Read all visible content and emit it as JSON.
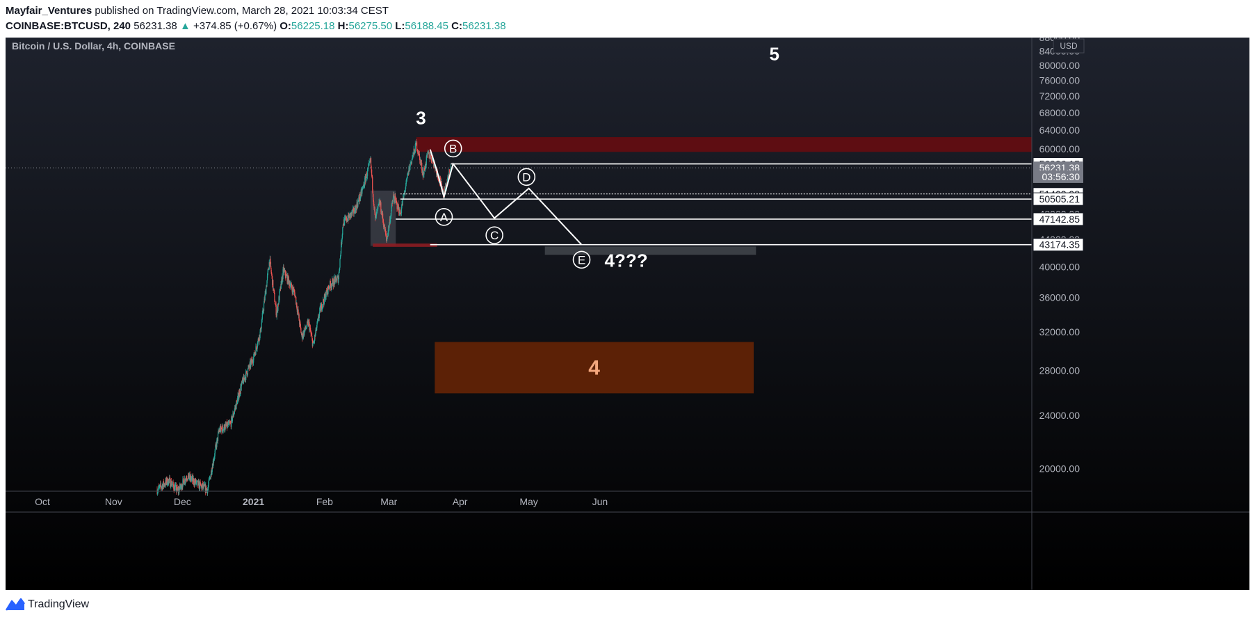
{
  "header": {
    "author": "Mayfair_Ventures",
    "published_text": "published on TradingView.com, March 28, 2021 10:03:34 CEST",
    "symbol": "COINBASE:BTCUSD, 240",
    "last": "56231.38",
    "change_arrow": "▲",
    "change": "+374.85 (+0.67%)",
    "o_label": "O:",
    "o_value": "56225.18",
    "h_label": "H:",
    "h_value": "56275.50",
    "l_label": "L:",
    "l_value": "56188.45",
    "c_label": "C:",
    "c_value": "56231.38"
  },
  "footer": {
    "brand": "TradingView",
    "logo_icon": "tradingview-logo-icon"
  },
  "colors": {
    "up": "#26a69a",
    "down": "#ef5350",
    "background_top": "#1e222d",
    "background_bottom": "#000000",
    "resistance_zone": "#5e0d12",
    "target_zone": "#5c2106",
    "target_text": "#f4a77d",
    "support_zone": "#3a3e44"
  },
  "chart_data": {
    "type": "candlestick",
    "title": "Bitcoin / U.S. Dollar, 4h, COINBASE",
    "currency_badge": "USD",
    "log_scale": true,
    "ylim": [
      18500,
      88000
    ],
    "y_ticks": [
      "88000.00",
      "84000.00",
      "80000.00",
      "76000.00",
      "72000.00",
      "68000.00",
      "64000.00",
      "60000.00",
      "56000.00",
      "52000.00",
      "48000.00",
      "44000.00",
      "40000.00",
      "36000.00",
      "32000.00",
      "28000.00",
      "24000.00",
      "20000.00"
    ],
    "x_ticks": [
      {
        "label": "Oct",
        "bold": false,
        "date": "2020-10-01"
      },
      {
        "label": "Nov",
        "bold": false,
        "date": "2020-11-01"
      },
      {
        "label": "Dec",
        "bold": false,
        "date": "2020-12-01"
      },
      {
        "label": "2021",
        "bold": true,
        "date": "2021-01-01"
      },
      {
        "label": "Feb",
        "bold": false,
        "date": "2021-02-01"
      },
      {
        "label": "Mar",
        "bold": false,
        "date": "2021-03-01"
      },
      {
        "label": "Apr",
        "bold": false,
        "date": "2021-04-01"
      },
      {
        "label": "May",
        "bold": false,
        "date": "2021-05-01"
      },
      {
        "label": "Jun",
        "bold": false,
        "date": "2021-06-01"
      }
    ],
    "price_path": [
      [
        "2020-11-20",
        18600
      ],
      [
        "2020-11-25",
        19200
      ],
      [
        "2020-11-29",
        18500
      ],
      [
        "2020-12-03",
        19500
      ],
      [
        "2020-12-08",
        18900
      ],
      [
        "2020-12-12",
        18600
      ],
      [
        "2020-12-17",
        22800
      ],
      [
        "2020-12-22",
        23300
      ],
      [
        "2020-12-27",
        26800
      ],
      [
        "2021-01-01",
        29300
      ],
      [
        "2021-01-04",
        32000
      ],
      [
        "2021-01-08",
        41000
      ],
      [
        "2021-01-11",
        34000
      ],
      [
        "2021-01-14",
        39500
      ],
      [
        "2021-01-19",
        36500
      ],
      [
        "2021-01-22",
        31500
      ],
      [
        "2021-01-25",
        33000
      ],
      [
        "2021-01-27",
        30500
      ],
      [
        "2021-01-30",
        34500
      ],
      [
        "2021-02-03",
        37500
      ],
      [
        "2021-02-07",
        38500
      ],
      [
        "2021-02-09",
        46500
      ],
      [
        "2021-02-14",
        48500
      ],
      [
        "2021-02-17",
        51500
      ],
      [
        "2021-02-21",
        57500
      ],
      [
        "2021-02-23",
        47000
      ],
      [
        "2021-02-25",
        50000
      ],
      [
        "2021-02-28",
        43800
      ],
      [
        "2021-03-03",
        51000
      ],
      [
        "2021-03-06",
        48000
      ],
      [
        "2021-03-10",
        56500
      ],
      [
        "2021-03-13",
        61000
      ],
      [
        "2021-03-16",
        55000
      ],
      [
        "2021-03-18",
        59000
      ],
      [
        "2021-03-20",
        58000
      ],
      [
        "2021-03-25",
        51500
      ],
      [
        "2021-03-28",
        56231
      ]
    ],
    "series": [
      {
        "type": "candlestick"
      }
    ],
    "price_labels": [
      {
        "value": "56996.15",
        "price": 56996.15,
        "style": "white"
      },
      {
        "value": "56231.38",
        "price": 56231.38,
        "style": "gray"
      },
      {
        "value": "03:56:30",
        "price": 54550,
        "style": "gray"
      },
      {
        "value": "51402.98",
        "price": 51402.98,
        "style": "white"
      },
      {
        "value": "50505.21",
        "price": 50505.21,
        "style": "white"
      },
      {
        "value": "47142.85",
        "price": 47142.85,
        "style": "white"
      },
      {
        "value": "43174.35",
        "price": 43174.35,
        "style": "white"
      }
    ],
    "horizontal_lines": [
      {
        "price": 56996.15,
        "from": "2021-03-28"
      },
      {
        "price": 51402.98,
        "from": "2021-03-06",
        "dotted": true
      },
      {
        "price": 50505.21,
        "from": "2021-03-06"
      },
      {
        "price": 47142.85,
        "from": "2021-03-04"
      },
      {
        "price": 43174.35,
        "from": "2021-03-19"
      }
    ],
    "zones": [
      {
        "name": "resistance",
        "from": "2021-03-13",
        "to": "end",
        "low": 59400,
        "high": 62500
      },
      {
        "name": "consolidation",
        "from": "2021-02-21",
        "to": "2021-03-04",
        "low": 43000,
        "high": 52000
      },
      {
        "name": "small-red",
        "from": "2021-02-22",
        "to": "2021-03-22",
        "low": 42850,
        "high": 43350
      },
      {
        "name": "wave-4-support",
        "from": "2021-05-08",
        "to": "2021-08-08",
        "low": 41700,
        "high": 42900
      },
      {
        "name": "wave-4-target",
        "from": "2021-03-21",
        "to": "2021-08-07",
        "low": 25900,
        "high": 30900,
        "label": "4"
      }
    ],
    "projection_path": [
      [
        "2021-03-19",
        59900
      ],
      [
        "2021-03-22",
        55600
      ],
      [
        "2021-03-25",
        50900
      ],
      [
        "2021-03-29",
        56996
      ],
      [
        "2021-04-16",
        47300
      ],
      [
        "2021-05-01",
        52400
      ],
      [
        "2021-05-24",
        43174
      ]
    ],
    "wave_points": [
      {
        "label": "A",
        "date": "2021-03-25",
        "price": 47500
      },
      {
        "label": "B",
        "date": "2021-03-29",
        "price": 60100
      },
      {
        "label": "C",
        "date": "2021-04-16",
        "price": 44600
      },
      {
        "label": "D",
        "date": "2021-04-30",
        "price": 54500
      },
      {
        "label": "E",
        "date": "2021-05-24",
        "price": 41000
      }
    ],
    "annotations": [
      {
        "text": "3",
        "date": "2021-03-15",
        "price": 65300
      },
      {
        "text": "5",
        "date": "2021-08-16",
        "price": 81400
      },
      {
        "text": "4???",
        "date": "2021-06-03",
        "price": 40000
      }
    ]
  }
}
